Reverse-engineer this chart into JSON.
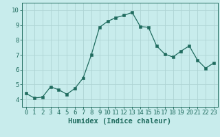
{
  "x": [
    0,
    1,
    2,
    3,
    4,
    5,
    6,
    7,
    8,
    9,
    10,
    11,
    12,
    13,
    14,
    15,
    16,
    17,
    18,
    19,
    20,
    21,
    22,
    23
  ],
  "y": [
    4.4,
    4.1,
    4.15,
    4.85,
    4.65,
    4.35,
    4.75,
    5.45,
    7.0,
    8.85,
    9.25,
    9.5,
    9.65,
    9.85,
    8.9,
    8.85,
    7.6,
    7.05,
    6.85,
    7.25,
    7.6,
    6.65,
    6.1,
    6.45
  ],
  "line_color": "#1f6b5e",
  "marker": "s",
  "marker_size": 2.5,
  "bg_color": "#c8ecec",
  "grid_color": "#aed4d4",
  "xlabel": "Humidex (Indice chaleur)",
  "xlim": [
    -0.5,
    23.5
  ],
  "ylim": [
    3.5,
    10.5
  ],
  "yticks": [
    4,
    5,
    6,
    7,
    8,
    9,
    10
  ],
  "xticks": [
    0,
    1,
    2,
    3,
    4,
    5,
    6,
    7,
    8,
    9,
    10,
    11,
    12,
    13,
    14,
    15,
    16,
    17,
    18,
    19,
    20,
    21,
    22,
    23
  ],
  "xlabel_color": "#1f6b5e",
  "tick_color": "#1f6b5e",
  "axis_color": "#1f6b5e",
  "xlabel_fontsize": 7.5,
  "tick_fontsize": 6.5
}
